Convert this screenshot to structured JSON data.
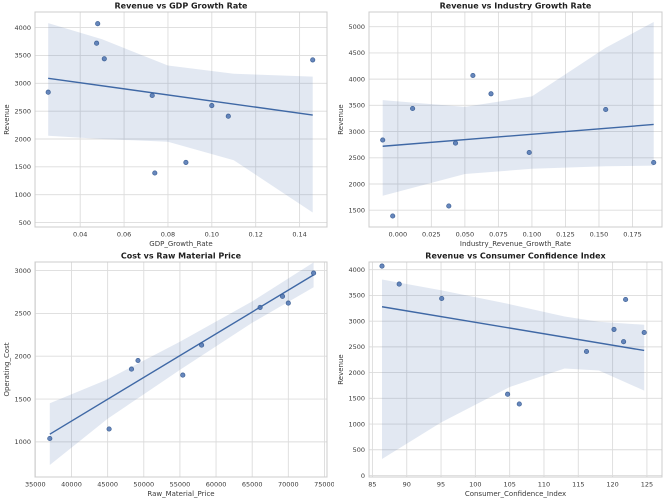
{
  "figure": {
    "background": "#ffffff",
    "accent_color": "#4c72b0",
    "band_color": "#4c72b0",
    "grid_color": "#dcdcdc",
    "spine_color": "#cccccc",
    "text_color": "#3a3a3a",
    "title_color": "#1f1f1f"
  },
  "chart_data": [
    {
      "type": "scatter",
      "title": "Revenue vs GDP Growth Rate",
      "xlabel": "GDP_Growth_Rate",
      "ylabel": "Revenue",
      "grid": true,
      "legend": "none",
      "xlim": [
        0.0194,
        0.1525
      ],
      "ylim": [
        420,
        4280
      ],
      "xticks": {
        "values": [
          0.04,
          0.06,
          0.08,
          0.1,
          0.12,
          0.14
        ],
        "labels": [
          "0.04",
          "0.06",
          "0.08",
          "0.10",
          "0.12",
          "0.14"
        ]
      },
      "yticks": {
        "values": [
          500,
          1000,
          1500,
          2000,
          2500,
          3000,
          3500,
          4000
        ],
        "labels": [
          "500",
          "1000",
          "1500",
          "2000",
          "2500",
          "3000",
          "3500",
          "4000"
        ]
      },
      "points": [
        [
          0.0254,
          2840
        ],
        [
          0.0475,
          3720
        ],
        [
          0.048,
          4070
        ],
        [
          0.051,
          3440
        ],
        [
          0.0728,
          2780
        ],
        [
          0.074,
          1390
        ],
        [
          0.0882,
          1580
        ],
        [
          0.1,
          2600
        ],
        [
          0.1075,
          2410
        ],
        [
          0.146,
          3420
        ]
      ],
      "regression_line": {
        "x": [
          0.0254,
          0.146
        ],
        "y": [
          3090,
          2430
        ]
      },
      "confidence_band": {
        "x": [
          0.0254,
          0.05,
          0.08,
          0.11,
          0.146
        ],
        "upper": [
          4080,
          3790,
          3320,
          3170,
          3120
        ],
        "lower": [
          2060,
          2000,
          1950,
          1620,
          680
        ]
      }
    },
    {
      "type": "scatter",
      "title": "Revenue vs Industry Growth Rate",
      "xlabel": "Industry_Revenue_Growth_Rate",
      "ylabel": "Revenue",
      "grid": true,
      "legend": "none",
      "xlim": [
        -0.0215,
        0.197
      ],
      "ylim": [
        1180,
        5280
      ],
      "xticks": {
        "values": [
          0.0,
          0.025,
          0.05,
          0.075,
          0.1,
          0.125,
          0.15,
          0.175
        ],
        "labels": [
          "0.000",
          "0.025",
          "0.050",
          "0.075",
          "0.100",
          "0.125",
          "0.150",
          "0.175"
        ]
      },
      "yticks": {
        "values": [
          1500,
          2000,
          2500,
          3000,
          3500,
          4000,
          4500,
          5000
        ],
        "labels": [
          "1500",
          "2000",
          "2500",
          "3000",
          "3500",
          "4000",
          "4500",
          "5000"
        ]
      },
      "points": [
        [
          -0.0113,
          2840
        ],
        [
          -0.0038,
          1390
        ],
        [
          0.011,
          3440
        ],
        [
          0.038,
          1580
        ],
        [
          0.043,
          2780
        ],
        [
          0.056,
          4070
        ],
        [
          0.0695,
          3720
        ],
        [
          0.098,
          2600
        ],
        [
          0.155,
          3420
        ],
        [
          0.1908,
          2410
        ]
      ],
      "regression_line": {
        "x": [
          -0.0113,
          0.1908
        ],
        "y": [
          2720,
          3135
        ]
      },
      "confidence_band": {
        "x": [
          -0.0113,
          0.05,
          0.1,
          0.155,
          0.1908
        ],
        "upper": [
          3600,
          3470,
          3670,
          4600,
          5090
        ],
        "lower": [
          1775,
          2190,
          2290,
          2340,
          2350
        ]
      }
    },
    {
      "type": "scatter",
      "title": "Cost vs Raw Material Price",
      "xlabel": "Raw_Material_Price",
      "ylabel": "Operating_Cost",
      "grid": true,
      "legend": "none",
      "xlim": [
        34950,
        75350
      ],
      "ylim": [
        590,
        3100
      ],
      "xticks": {
        "values": [
          35000,
          40000,
          45000,
          50000,
          55000,
          60000,
          65000,
          70000,
          75000
        ],
        "labels": [
          "35000",
          "40000",
          "45000",
          "50000",
          "55000",
          "60000",
          "65000",
          "70000",
          "75000"
        ]
      },
      "yticks": {
        "values": [
          1000,
          1500,
          2000,
          2500,
          3000
        ],
        "labels": [
          "1000",
          "1500",
          "2000",
          "2500",
          "3000"
        ]
      },
      "points": [
        [
          37000,
          1040
        ],
        [
          45200,
          1150
        ],
        [
          48300,
          1850
        ],
        [
          49200,
          1950
        ],
        [
          55400,
          1780
        ],
        [
          58000,
          2130
        ],
        [
          66100,
          2570
        ],
        [
          69200,
          2700
        ],
        [
          70000,
          2620
        ],
        [
          73500,
          2970
        ]
      ],
      "regression_line": {
        "x": [
          37000,
          73500
        ],
        "y": [
          1090,
          2950
        ]
      },
      "confidence_band": {
        "x": [
          37000,
          45000,
          55000,
          65000,
          73500
        ],
        "upper": [
          1450,
          1730,
          2170,
          2640,
          3095
        ],
        "lower": [
          730,
          1270,
          1840,
          2390,
          2805
        ]
      }
    },
    {
      "type": "scatter",
      "title": "Revenue vs Consumer Confidence Index",
      "xlabel": "Consumer_Confidence_Index",
      "ylabel": "Revenue",
      "grid": true,
      "legend": "none",
      "xlim": [
        84.5,
        127.2
      ],
      "ylim": [
        -30,
        4150
      ],
      "xticks": {
        "values": [
          85,
          90,
          95,
          100,
          105,
          110,
          115,
          120,
          125
        ],
        "labels": [
          "85",
          "90",
          "95",
          "100",
          "105",
          "110",
          "115",
          "120",
          "125"
        ]
      },
      "yticks": {
        "values": [
          0,
          500,
          1000,
          1500,
          2000,
          2500,
          3000,
          3500,
          4000
        ],
        "labels": [
          "0",
          "500",
          "1000",
          "1500",
          "2000",
          "2500",
          "3000",
          "3500",
          "4000"
        ]
      },
      "points": [
        [
          86.4,
          4070
        ],
        [
          88.9,
          3720
        ],
        [
          95.1,
          3440
        ],
        [
          104.7,
          1580
        ],
        [
          106.4,
          1390
        ],
        [
          116.2,
          2410
        ],
        [
          120.2,
          2840
        ],
        [
          121.6,
          2600
        ],
        [
          121.9,
          3420
        ],
        [
          124.6,
          2780
        ]
      ],
      "regression_line": {
        "x": [
          86.4,
          124.6
        ],
        "y": [
          3280,
          2430
        ]
      },
      "confidence_band": {
        "x": [
          86.4,
          95,
          105,
          113,
          118,
          124.6
        ],
        "upper": [
          3810,
          3600,
          3330,
          3090,
          2990,
          2930
        ],
        "lower": [
          320,
          1030,
          1720,
          2080,
          2040,
          1650
        ]
      }
    }
  ]
}
